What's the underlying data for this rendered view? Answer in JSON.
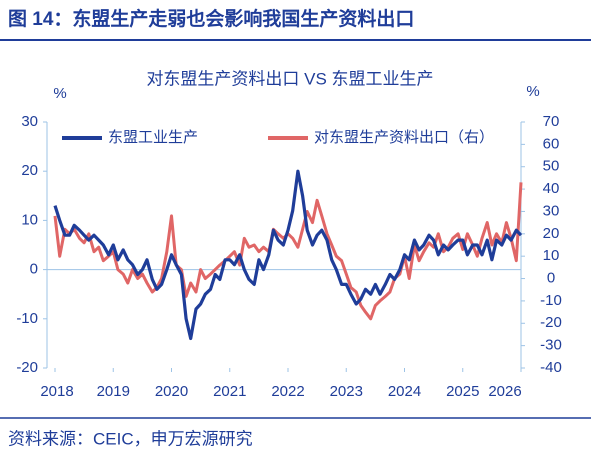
{
  "header": {
    "title": "图 14：东盟生产走弱也会影响我国生产资料出口"
  },
  "footer": {
    "source": "资料来源：CEIC，申万宏源研究"
  },
  "chart_data": {
    "type": "line",
    "title": "对东盟生产资料出口 VS 东盟工业生产",
    "y_label": "%",
    "y2_label": "%",
    "x": [
      2018,
      2018.08,
      2018.17,
      2018.25,
      2018.33,
      2018.42,
      2018.5,
      2018.58,
      2018.67,
      2018.75,
      2018.83,
      2018.92,
      2019,
      2019.08,
      2019.17,
      2019.25,
      2019.33,
      2019.42,
      2019.5,
      2019.58,
      2019.67,
      2019.75,
      2019.83,
      2019.92,
      2020,
      2020.08,
      2020.17,
      2020.25,
      2020.33,
      2020.42,
      2020.5,
      2020.58,
      2020.67,
      2020.75,
      2020.83,
      2020.92,
      2021,
      2021.08,
      2021.17,
      2021.25,
      2021.33,
      2021.42,
      2021.5,
      2021.58,
      2021.67,
      2021.75,
      2021.83,
      2021.92,
      2022,
      2022.08,
      2022.17,
      2022.25,
      2022.33,
      2022.42,
      2022.5,
      2022.58,
      2022.67,
      2022.75,
      2022.83,
      2022.92,
      2023,
      2023.08,
      2023.17,
      2023.25,
      2023.33,
      2023.42,
      2023.5,
      2023.58,
      2023.67,
      2023.75,
      2023.83,
      2023.92,
      2024,
      2024.08,
      2024.17,
      2024.25,
      2024.33,
      2024.42,
      2024.5,
      2024.58,
      2024.67,
      2024.75,
      2024.83,
      2024.92,
      2025,
      2025.08,
      2025.17,
      2025.25,
      2025.33,
      2025.42,
      2025.5,
      2025.58,
      2025.67,
      2025.75,
      2025.83,
      2025.92,
      2026
    ],
    "series": [
      {
        "name": "东盟工业生产",
        "color": "#1f3d99",
        "axis": "y",
        "values": [
          13,
          10,
          7,
          7,
          9,
          8,
          7,
          6,
          7,
          6,
          5,
          3,
          5,
          2,
          4,
          2,
          1,
          -1,
          0,
          2,
          -2,
          -4,
          -3,
          0,
          3,
          1,
          -1,
          -10,
          -14,
          -8,
          -7,
          -5,
          -4,
          -1,
          -2,
          2,
          2,
          1,
          3,
          0,
          -2,
          -3,
          2,
          0,
          3,
          8,
          6,
          5,
          8,
          12,
          20,
          15,
          8,
          5,
          7,
          8,
          6,
          2,
          0,
          -3,
          -3,
          -5,
          -7,
          -6,
          -4,
          -5,
          -3,
          -5,
          -3,
          -1,
          -2,
          0,
          3,
          2,
          6,
          4,
          5,
          7,
          6,
          3,
          5,
          4,
          5,
          6,
          6,
          3,
          5,
          5,
          3,
          6,
          2,
          6,
          5,
          7,
          6,
          8,
          7
        ]
      },
      {
        "name": "对东盟生产资料出口（右）",
        "color": "#e06666",
        "axis": "y2",
        "values": [
          28,
          10,
          22,
          20,
          22,
          18,
          16,
          20,
          12,
          14,
          8,
          10,
          12,
          4,
          2,
          -2,
          4,
          0,
          2,
          -2,
          -6,
          -4,
          0,
          12,
          28,
          6,
          4,
          -8,
          -2,
          -6,
          4,
          0,
          2,
          4,
          6,
          8,
          10,
          12,
          6,
          18,
          14,
          15,
          12,
          14,
          12,
          22,
          20,
          18,
          20,
          18,
          14,
          22,
          30,
          25,
          35,
          28,
          20,
          15,
          10,
          8,
          2,
          -4,
          -6,
          -12,
          -15,
          -18,
          -12,
          -10,
          -8,
          -6,
          0,
          2,
          10,
          0,
          15,
          8,
          12,
          16,
          14,
          20,
          12,
          14,
          18,
          20,
          13,
          20,
          15,
          10,
          18,
          25,
          15,
          20,
          16,
          25,
          18,
          8,
          43
        ]
      }
    ],
    "xlim": [
      2018,
      2026
    ],
    "xticks": [
      2018,
      2019,
      2020,
      2021,
      2022,
      2023,
      2024,
      2025,
      2026
    ],
    "ylim": [
      -20,
      30
    ],
    "yticks": [
      -20,
      -10,
      0,
      10,
      20,
      30
    ],
    "y2lim": [
      -40,
      70
    ],
    "y2ticks": [
      -40,
      -30,
      -20,
      -10,
      0,
      10,
      20,
      30,
      40,
      50,
      60,
      70
    ]
  }
}
